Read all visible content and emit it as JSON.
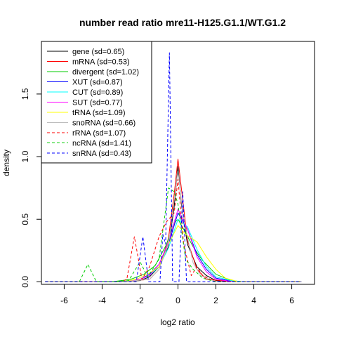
{
  "chart_data": {
    "type": "line",
    "title": "number read ratio mre11-H125.G1.1/WT.G1.2",
    "xlabel": "log2 ratio",
    "ylabel": "density",
    "xlim": [
      -7.2,
      7.2
    ],
    "ylim": [
      -0.02,
      1.92
    ],
    "xticks": [
      -6,
      -4,
      -2,
      0,
      2,
      4,
      6
    ],
    "yticks": [
      0.0,
      0.5,
      1.0,
      1.5
    ],
    "xtick_labels": [
      "-6",
      "-4",
      "-2",
      "0",
      "2",
      "4",
      "6"
    ],
    "ytick_labels": [
      "0.0",
      "0.5",
      "1.0",
      "1.5"
    ],
    "legend_position": "top-left",
    "grid": false,
    "series": [
      {
        "name": "gene (sd=0.65)",
        "color": "#000000",
        "dash": "solid",
        "points": [
          [
            -7,
            0
          ],
          [
            -3,
            0
          ],
          [
            -2,
            0.01
          ],
          [
            -1.5,
            0.04
          ],
          [
            -1,
            0.12
          ],
          [
            -0.5,
            0.28
          ],
          [
            -0.2,
            0.6
          ],
          [
            0,
            0.92
          ],
          [
            0.2,
            0.6
          ],
          [
            0.5,
            0.3
          ],
          [
            1,
            0.12
          ],
          [
            1.5,
            0.05
          ],
          [
            2,
            0.01
          ],
          [
            3,
            0
          ],
          [
            6.5,
            0
          ]
        ]
      },
      {
        "name": "mRNA (sd=0.53)",
        "color": "#ff0000",
        "dash": "solid",
        "points": [
          [
            -7,
            0
          ],
          [
            -3,
            0
          ],
          [
            -1.5,
            0.02
          ],
          [
            -1,
            0.1
          ],
          [
            -0.5,
            0.35
          ],
          [
            -0.2,
            0.7
          ],
          [
            0,
            0.98
          ],
          [
            0.2,
            0.72
          ],
          [
            0.5,
            0.33
          ],
          [
            1,
            0.1
          ],
          [
            1.5,
            0.02
          ],
          [
            3,
            0
          ],
          [
            6.5,
            0
          ]
        ]
      },
      {
        "name": "divergent (sd=1.02)",
        "color": "#00cd00",
        "dash": "solid",
        "points": [
          [
            -7,
            0
          ],
          [
            -3.5,
            0
          ],
          [
            -2.5,
            0.02
          ],
          [
            -1.8,
            0.06
          ],
          [
            -1.2,
            0.13
          ],
          [
            -0.6,
            0.3
          ],
          [
            -0.2,
            0.47
          ],
          [
            0,
            0.5
          ],
          [
            0.3,
            0.42
          ],
          [
            0.8,
            0.28
          ],
          [
            1.3,
            0.17
          ],
          [
            2,
            0.06
          ],
          [
            2.8,
            0.01
          ],
          [
            3.5,
            0
          ],
          [
            6.5,
            0
          ]
        ]
      },
      {
        "name": "XUT (sd=0.87)",
        "color": "#0000ff",
        "dash": "solid",
        "points": [
          [
            -7,
            0
          ],
          [
            -3,
            0
          ],
          [
            -2,
            0.02
          ],
          [
            -1.5,
            0.06
          ],
          [
            -1,
            0.14
          ],
          [
            -0.5,
            0.3
          ],
          [
            0,
            0.55
          ],
          [
            0.5,
            0.42
          ],
          [
            1,
            0.22
          ],
          [
            1.5,
            0.1
          ],
          [
            2,
            0.03
          ],
          [
            3,
            0
          ],
          [
            6.5,
            0
          ]
        ]
      },
      {
        "name": "CUT (sd=0.89)",
        "color": "#00ffff",
        "dash": "solid",
        "points": [
          [
            -7,
            0
          ],
          [
            -3,
            0
          ],
          [
            -2,
            0.02
          ],
          [
            -1.5,
            0.05
          ],
          [
            -1,
            0.12
          ],
          [
            -0.5,
            0.27
          ],
          [
            0,
            0.5
          ],
          [
            0.5,
            0.44
          ],
          [
            1,
            0.26
          ],
          [
            1.5,
            0.12
          ],
          [
            2,
            0.04
          ],
          [
            2.8,
            0.01
          ],
          [
            3.5,
            0
          ],
          [
            6.5,
            0
          ]
        ]
      },
      {
        "name": "SUT (sd=0.77)",
        "color": "#ff00ff",
        "dash": "solid",
        "points": [
          [
            -7,
            0
          ],
          [
            -3,
            0
          ],
          [
            -2,
            0.02
          ],
          [
            -1.5,
            0.05
          ],
          [
            -1,
            0.14
          ],
          [
            -0.5,
            0.32
          ],
          [
            0,
            0.58
          ],
          [
            0.5,
            0.42
          ],
          [
            1,
            0.2
          ],
          [
            1.5,
            0.08
          ],
          [
            2,
            0.02
          ],
          [
            3,
            0
          ],
          [
            6.5,
            0
          ]
        ]
      },
      {
        "name": "tRNA (sd=1.09)",
        "color": "#ffff00",
        "dash": "solid",
        "points": [
          [
            -7,
            0
          ],
          [
            -3,
            0
          ],
          [
            -2.2,
            0.02
          ],
          [
            -1.5,
            0.07
          ],
          [
            -1,
            0.12
          ],
          [
            -0.5,
            0.3
          ],
          [
            0,
            0.45
          ],
          [
            0.4,
            0.38
          ],
          [
            1,
            0.32
          ],
          [
            1.5,
            0.2
          ],
          [
            2,
            0.1
          ],
          [
            2.5,
            0.03
          ],
          [
            3.2,
            0
          ],
          [
            6.5,
            0
          ]
        ]
      },
      {
        "name": "snoRNA (sd=0.66)",
        "color": "#bebebe",
        "dash": "solid",
        "points": [
          [
            -7,
            0
          ],
          [
            -3,
            0
          ],
          [
            -1.5,
            0.02
          ],
          [
            -1,
            0.1
          ],
          [
            -0.5,
            0.3
          ],
          [
            -0.2,
            0.65
          ],
          [
            0,
            0.88
          ],
          [
            0.3,
            0.5
          ],
          [
            0.8,
            0.15
          ],
          [
            1.2,
            0.05
          ],
          [
            2,
            0
          ],
          [
            6.5,
            0
          ]
        ]
      },
      {
        "name": "rRNA (sd=1.07)",
        "color": "#ff0000",
        "dash": "dashed",
        "points": [
          [
            -7,
            0
          ],
          [
            -3,
            0
          ],
          [
            -2.7,
            0.02
          ],
          [
            -2.3,
            0.36
          ],
          [
            -1.9,
            0.02
          ],
          [
            -1.5,
            0.12
          ],
          [
            -1.0,
            0.36
          ],
          [
            -0.6,
            0.48
          ],
          [
            -0.2,
            0.55
          ],
          [
            0,
            0.82
          ],
          [
            0.3,
            0.3
          ],
          [
            0.7,
            0.05
          ],
          [
            1.0,
            0.12
          ],
          [
            1.3,
            0.05
          ],
          [
            2,
            0
          ],
          [
            6.5,
            0
          ]
        ]
      },
      {
        "name": "ncRNA (sd=1.41)",
        "color": "#00cd00",
        "dash": "dashed",
        "points": [
          [
            -7,
            0
          ],
          [
            -5.2,
            0
          ],
          [
            -4.75,
            0.14
          ],
          [
            -4.3,
            0
          ],
          [
            -3.5,
            0
          ],
          [
            -2.6,
            0.01
          ],
          [
            -2.0,
            0.16
          ],
          [
            -1.6,
            0.04
          ],
          [
            -1.0,
            0.18
          ],
          [
            -0.5,
            0.75
          ],
          [
            -0.2,
            0.72
          ],
          [
            0,
            0.62
          ],
          [
            0.4,
            0.18
          ],
          [
            0.8,
            0.1
          ],
          [
            1.3,
            0.03
          ],
          [
            2,
            0
          ],
          [
            6.5,
            0
          ]
        ]
      },
      {
        "name": "snRNA (sd=0.43)",
        "color": "#0000ff",
        "dash": "dashed",
        "points": [
          [
            -7,
            0
          ],
          [
            -3,
            0
          ],
          [
            -2.2,
            0
          ],
          [
            -1.85,
            0.36
          ],
          [
            -1.55,
            0
          ],
          [
            -0.95,
            0
          ],
          [
            -0.8,
            0.38
          ],
          [
            -0.65,
            0.3
          ],
          [
            -0.45,
            1.83
          ],
          [
            -0.28,
            0
          ],
          [
            0.05,
            0
          ],
          [
            0.25,
            0.72
          ],
          [
            0.45,
            0
          ],
          [
            6.5,
            0
          ]
        ]
      }
    ]
  }
}
